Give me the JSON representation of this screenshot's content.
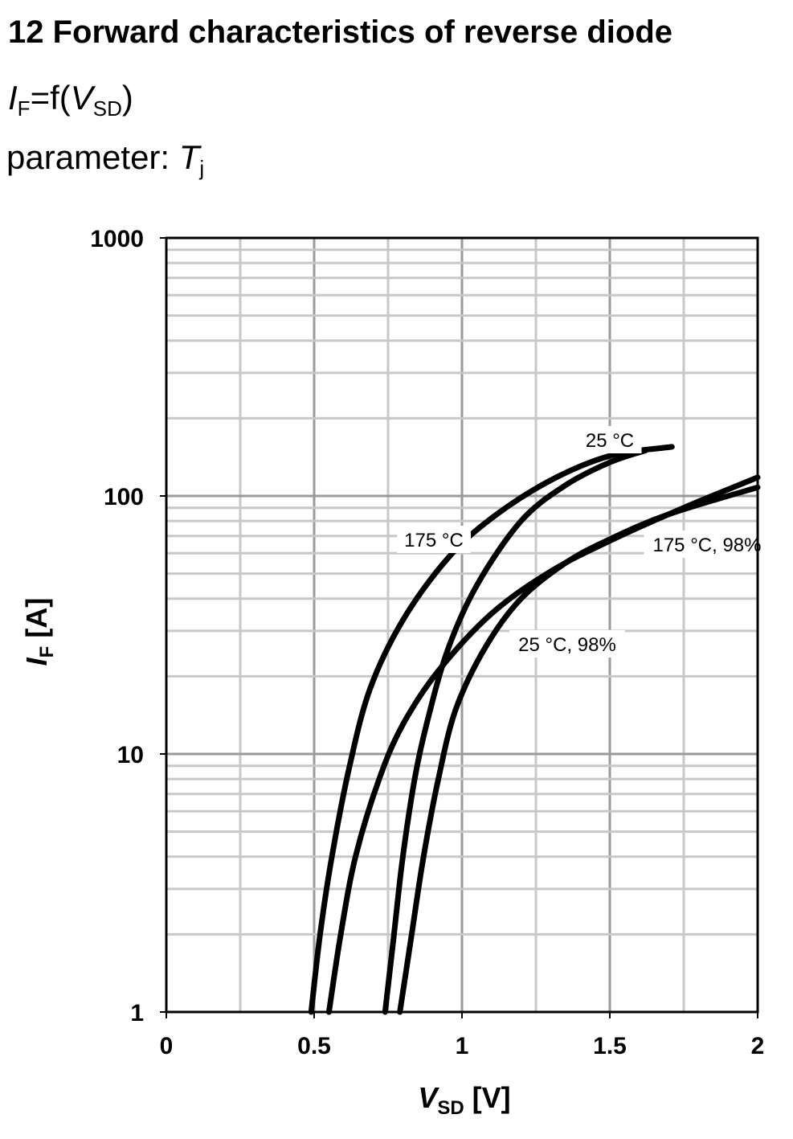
{
  "header": {
    "title": "12 Forward characteristics of reverse diode",
    "formula": {
      "lhs": "I",
      "lhs_sub": "F",
      "middle": "=f(",
      "arg": "V",
      "arg_sub": "SD",
      "close": ")"
    },
    "parameter": {
      "prefix": "parameter: ",
      "symbol": "T",
      "symbol_sub": "j"
    }
  },
  "chart_data": {
    "type": "line",
    "x": {
      "label": "V",
      "label_sub": "SD",
      "label_unit": " [V]",
      "lim": [
        0,
        2
      ],
      "ticks": [
        "0",
        "0.5",
        "1",
        "1.5",
        "2"
      ],
      "scale": "linear"
    },
    "y": {
      "label": "I",
      "label_sub": "F",
      "label_unit": " [A]",
      "lim": [
        1,
        1000
      ],
      "ticks": [
        "1",
        "10",
        "100",
        "1000"
      ],
      "scale": "log"
    },
    "grid": true,
    "series": [
      {
        "name": "25 °C",
        "points": [
          [
            0.74,
            1
          ],
          [
            0.77,
            2
          ],
          [
            0.8,
            4
          ],
          [
            0.84,
            8
          ],
          [
            0.88,
            13
          ],
          [
            0.95,
            25
          ],
          [
            1.05,
            45
          ],
          [
            1.2,
            80
          ],
          [
            1.35,
            110
          ],
          [
            1.5,
            135
          ],
          [
            1.62,
            150
          ]
        ]
      },
      {
        "name": "175 °C",
        "points": [
          [
            0.49,
            1
          ],
          [
            0.52,
            2
          ],
          [
            0.56,
            4
          ],
          [
            0.62,
            9
          ],
          [
            0.69,
            18
          ],
          [
            0.8,
            33
          ],
          [
            0.95,
            57
          ],
          [
            1.1,
            82
          ],
          [
            1.3,
            115
          ],
          [
            1.5,
            143
          ],
          [
            1.71,
            155
          ]
        ]
      },
      {
        "name": "25 °C, 98%",
        "points": [
          [
            0.79,
            1
          ],
          [
            0.83,
            2
          ],
          [
            0.87,
            4
          ],
          [
            0.92,
            8
          ],
          [
            0.98,
            15
          ],
          [
            1.08,
            26
          ],
          [
            1.2,
            40
          ],
          [
            1.35,
            55
          ],
          [
            1.5,
            68
          ],
          [
            1.7,
            85
          ],
          [
            2.0,
            108
          ]
        ]
      },
      {
        "name": "175 °C, 98%",
        "points": [
          [
            0.55,
            1
          ],
          [
            0.59,
            2
          ],
          [
            0.64,
            4
          ],
          [
            0.72,
            8
          ],
          [
            0.8,
            13
          ],
          [
            0.92,
            21
          ],
          [
            1.1,
            35
          ],
          [
            1.3,
            51
          ],
          [
            1.5,
            67
          ],
          [
            1.75,
            90
          ],
          [
            2.0,
            118
          ]
        ]
      }
    ],
    "annotations": [
      "25 °C",
      "175 °C",
      "25 °C, 98%",
      "175 °C, 98%"
    ]
  }
}
